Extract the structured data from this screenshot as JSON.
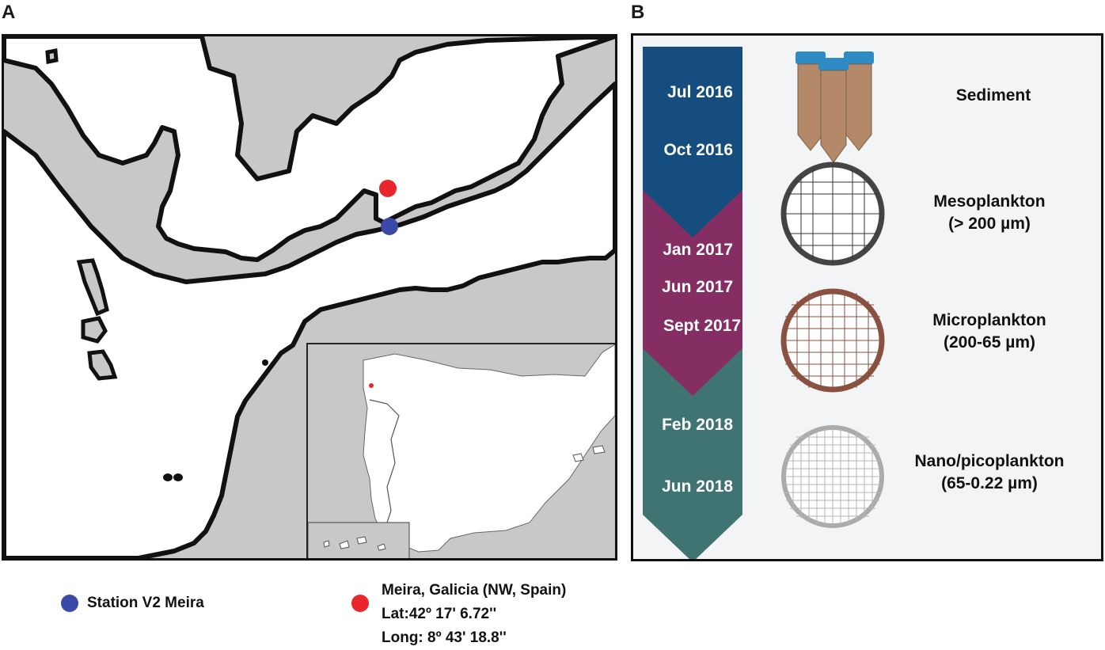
{
  "panels": {
    "a_label": "A",
    "b_label": "B"
  },
  "timeline": {
    "dates": [
      "Jul 2016",
      "Oct 2016",
      "Jan 2017",
      "Jun 2017",
      "Sept 2017",
      "Feb 2018",
      "Jun 2018"
    ],
    "colors": {
      "2016": "#154e7e",
      "2017": "#852e63",
      "2018": "#3f7472"
    }
  },
  "samples": {
    "sediment": "Sediment",
    "meso_name": "Mesoplankton",
    "meso_size": "(> 200 µm)",
    "micro_name": "Microplankton",
    "micro_size": "(200-65 µm)",
    "nano_name": "Nano/picoplankton",
    "nano_size": "(65-0.22 µm)"
  },
  "legend": {
    "station": "Station V2 Meira",
    "station_color": "#3b49a6",
    "site_line1": "Meira, Galicia (NW, Spain)",
    "site_line2": "Lat:42º 17' 6.72''",
    "site_line3": "Long: 8º 43' 18.8''",
    "site_color": "#e8262b"
  },
  "map": {
    "land_color": "#c8c8c8",
    "coast_color": "#111111"
  }
}
